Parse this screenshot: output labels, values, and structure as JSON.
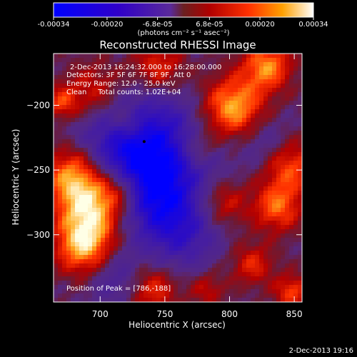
{
  "colorbar": {
    "tick_labels": [
      "-0.00034",
      "-0.00020",
      "-6.8e-05",
      "6.8e-05",
      "0.00020",
      "0.00034"
    ],
    "tick_values": [
      -0.00034,
      -0.0002,
      -6.8e-05,
      6.8e-05,
      0.0002,
      0.00034
    ],
    "range": [
      -0.00034,
      0.00034
    ],
    "units_label": "(photons cm⁻² s⁻¹ asec⁻²)"
  },
  "chart_data": {
    "type": "heatmap",
    "title": "Reconstructed RHESSI Image",
    "xlabel": "Heliocentric X (arcsec)",
    "ylabel": "Heliocentric Y (arcsec)",
    "xlim": [
      664,
      856
    ],
    "ylim": [
      -352,
      -160
    ],
    "x_ticks": [
      700,
      750,
      800,
      850
    ],
    "y_ticks": [
      -200,
      -250,
      -300
    ],
    "x_tick_labels": [
      "700",
      "750",
      "800",
      "850"
    ],
    "y_tick_labels": [
      "−200",
      "−250",
      "−300"
    ],
    "annotations": [
      "2-Dec-2013 16:24:32.000 to 16:28:00.000",
      "Detectors: 3F 5F 6F 7F 8F 9F, Att 0",
      "Energy Range: 12.0 - 25.0 keV",
      "Clean     Total counts: 1.02E+04"
    ],
    "peak_label": "Position of Peak = [786,-188]",
    "marked_point": [
      734,
      -228
    ]
  },
  "footer": {
    "timestamp": "2-Dec-2013 19:16"
  }
}
